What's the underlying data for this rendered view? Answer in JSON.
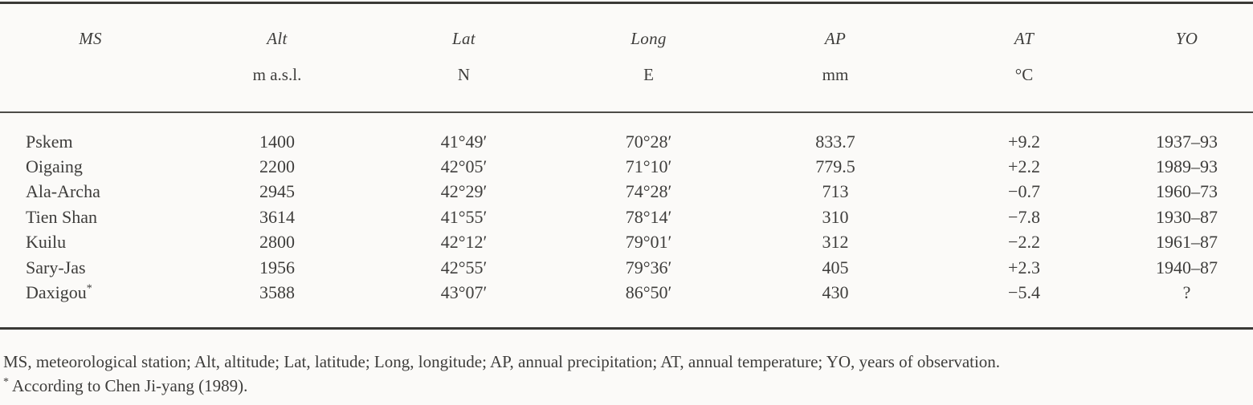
{
  "page": {
    "background_color": "#fbfaf8",
    "text_color": "#3e3d3b"
  },
  "table": {
    "columns": [
      {
        "key": "ms",
        "label": "MS",
        "unit": ""
      },
      {
        "key": "alt",
        "label": "Alt",
        "unit": "m a.s.l."
      },
      {
        "key": "lat",
        "label": "Lat",
        "unit": "N"
      },
      {
        "key": "long",
        "label": "Long",
        "unit": "E"
      },
      {
        "key": "ap",
        "label": "AP",
        "unit": "mm"
      },
      {
        "key": "at",
        "label": "AT",
        "unit": "°C"
      },
      {
        "key": "yo",
        "label": "YO",
        "unit": ""
      }
    ],
    "rows": [
      {
        "ms": "Pskem",
        "alt": "1400",
        "lat": "41°49′",
        "long": "70°28′",
        "ap": "833.7",
        "at": "+9.2",
        "yo": "1937–93"
      },
      {
        "ms": "Oigaing",
        "alt": "2200",
        "lat": "42°05′",
        "long": "71°10′",
        "ap": "779.5",
        "at": "+2.2",
        "yo": "1989–93"
      },
      {
        "ms": "Ala-Archa",
        "alt": "2945",
        "lat": "42°29′",
        "long": "74°28′",
        "ap": "713",
        "at": "−0.7",
        "yo": "1960–73"
      },
      {
        "ms": "Tien Shan",
        "alt": "3614",
        "lat": "41°55′",
        "long": "78°14′",
        "ap": "310",
        "at": "−7.8",
        "yo": "1930–87"
      },
      {
        "ms": "Kuilu",
        "alt": "2800",
        "lat": "42°12′",
        "long": "79°01′",
        "ap": "312",
        "at": "−2.2",
        "yo": "1961–87"
      },
      {
        "ms": "Sary-Jas",
        "alt": "1956",
        "lat": "42°55′",
        "long": "79°36′",
        "ap": "405",
        "at": "+2.3",
        "yo": "1940–87"
      },
      {
        "ms": "Daxigou",
        "ms_marker": "*",
        "alt": "3588",
        "lat": "43°07′",
        "long": "86°50′",
        "ap": "430",
        "at": "−5.4",
        "yo": "?"
      }
    ]
  },
  "footnotes": {
    "abbreviations": "MS, meteorological station; Alt, altitude; Lat, latitude; Long, longitude; AP, annual precipitation; AT, annual temperature; YO, years of observation.",
    "asterisk_marker": "*",
    "asterisk_text": "According to Chen Ji-yang (1989)."
  }
}
